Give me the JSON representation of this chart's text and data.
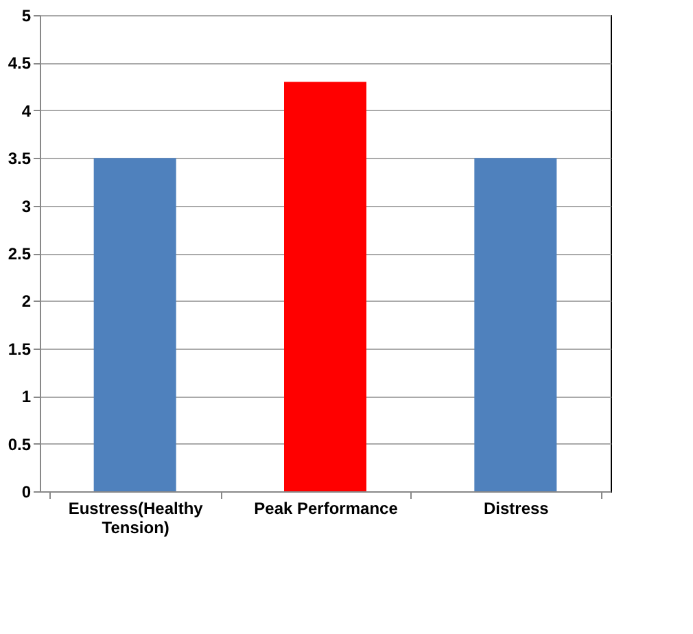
{
  "chart_data": {
    "type": "bar",
    "categories": [
      "Eustress(Healthy Tension)",
      "Peak Performance",
      "Distress"
    ],
    "values": [
      3.5,
      4.3,
      3.5
    ],
    "colors": [
      "#4f81bd",
      "#ff0000",
      "#4f81bd"
    ],
    "ylim": [
      0,
      5
    ],
    "yticks": [
      0,
      0.5,
      1,
      1.5,
      2,
      2.5,
      3,
      3.5,
      4,
      4.5,
      5
    ],
    "grid": "y",
    "legend": false
  }
}
